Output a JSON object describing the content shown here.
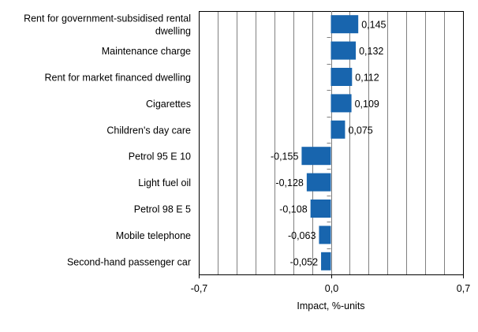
{
  "chart_data": {
    "type": "bar",
    "orientation": "horizontal",
    "categories": [
      [
        "Rent for government-subsidised rental",
        "dwelling"
      ],
      [
        "Maintenance charge"
      ],
      [
        "Rent for market financed dwelling"
      ],
      [
        "Cigarettes"
      ],
      [
        "Children's day care"
      ],
      [
        "Petrol 95 E 10"
      ],
      [
        "Light fuel oil"
      ],
      [
        "Petrol 98 E 5"
      ],
      [
        "Mobile telephone"
      ],
      [
        "Second-hand passenger car"
      ]
    ],
    "values": [
      0.145,
      0.132,
      0.112,
      0.109,
      0.075,
      -0.155,
      -0.128,
      -0.108,
      -0.063,
      -0.052
    ],
    "value_labels": [
      "0,145",
      "0,132",
      "0,112",
      "0,109",
      "0,075",
      "-0,155",
      "-0,128",
      "-0,108",
      "-0,063",
      "-0,052"
    ],
    "xlabel": "Impact, %-units",
    "ylabel": "",
    "xlim": [
      -0.7,
      0.7
    ],
    "xticks": [
      -0.7,
      0.0,
      0.7
    ],
    "xtick_labels": [
      "-0,7",
      "0,0",
      "0,7"
    ],
    "grid_step": 0.1,
    "grid": "vertical",
    "bar_color": "#1865ae"
  }
}
